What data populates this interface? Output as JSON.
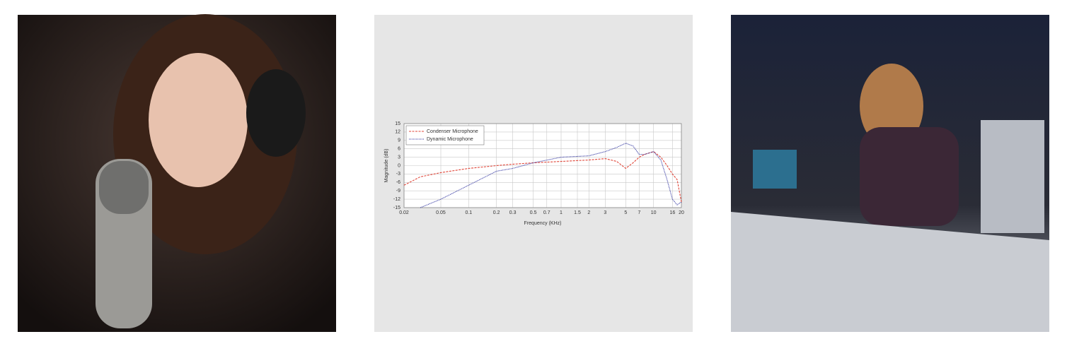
{
  "chart_data": {
    "type": "line",
    "x_label": "Frequency (KHz)",
    "y_label": "Magnitude (dB)",
    "x": [
      0.02,
      0.03,
      0.05,
      0.1,
      0.2,
      0.3,
      0.5,
      1,
      2,
      3,
      4,
      5,
      6,
      7,
      8,
      10,
      12,
      14,
      16,
      18,
      20
    ],
    "series": [
      {
        "name": "Condenser Microphone",
        "color": "#e0473a",
        "dash": "dashed",
        "values": [
          -7,
          -4,
          -2.5,
          -1,
          0,
          0.5,
          1,
          1.5,
          2,
          2.5,
          1.5,
          -1,
          1,
          3,
          4,
          5,
          3,
          0,
          -3,
          -5,
          -13
        ]
      },
      {
        "name": "Dynamic Microphone",
        "color": "#2b2f9e",
        "dash": "dotted",
        "values": [
          null,
          -15,
          -12,
          -7,
          -2,
          -1,
          1,
          3,
          3.5,
          5,
          6.5,
          8,
          7,
          4,
          4,
          5,
          2,
          -5,
          -12,
          -14,
          -13
        ]
      }
    ],
    "xscale": "log",
    "xlim": [
      0.02,
      20
    ],
    "xticks": [
      0.02,
      0.05,
      0.1,
      0.2,
      0.3,
      0.5,
      0.7,
      1,
      1.5,
      2,
      3,
      5,
      7,
      10,
      16,
      20
    ],
    "ylim": [
      -15,
      15
    ],
    "yticks": [
      -15,
      -12,
      -9,
      -6,
      -3,
      0,
      3,
      6,
      9,
      12,
      15
    ],
    "grid": true,
    "legend": "upper left"
  }
}
